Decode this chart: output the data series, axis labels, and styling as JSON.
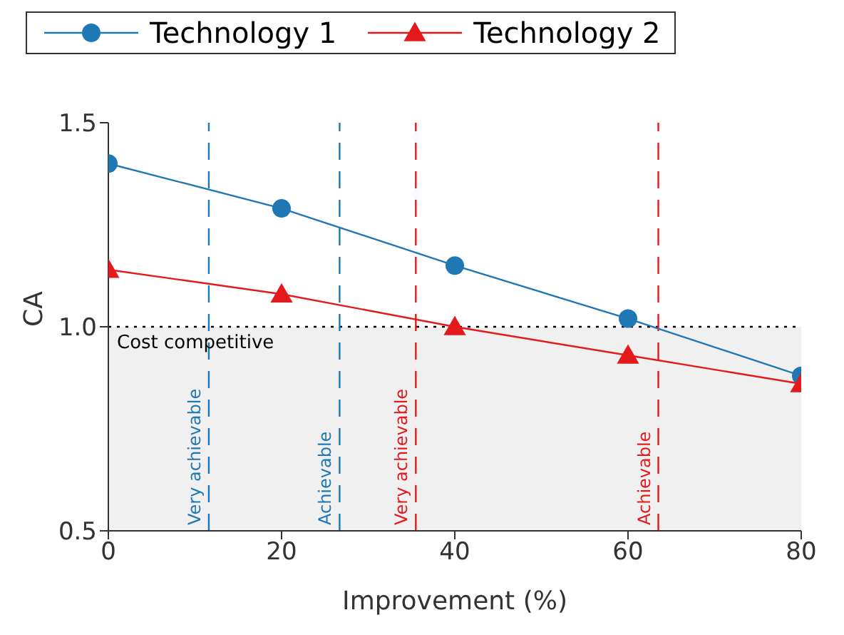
{
  "chart_data": {
    "type": "line",
    "xlabel": "Improvement (%)",
    "ylabel": "CA",
    "x": [
      0,
      20,
      40,
      60,
      80
    ],
    "series": [
      {
        "name": "Technology 1",
        "color": "#1f77b4",
        "marker": "circle",
        "values": [
          1.4,
          1.29,
          1.15,
          1.02,
          0.88
        ]
      },
      {
        "name": "Technology 2",
        "color": "#e31a1c",
        "marker": "triangle",
        "values": [
          1.14,
          1.08,
          1.0,
          0.93,
          0.86
        ]
      }
    ],
    "xlim": [
      0,
      80
    ],
    "xticks": [
      0,
      20,
      40,
      60,
      80
    ],
    "ylim": [
      0.5,
      1.5
    ],
    "yticks": [
      0.5,
      {
        "value": 1,
        "label": "1.0"
      },
      1.5
    ],
    "ref_lines": [
      {
        "axis": "y",
        "value": 1,
        "color": "#000000",
        "line_style": "dotted"
      },
      {
        "axis": "x",
        "value": 11.6,
        "label": "Very achievable",
        "color": "#1f77b4",
        "line_style": "dashed"
      },
      {
        "axis": "x",
        "value": 26.7,
        "label": "Achievable",
        "color": "#1f77b4",
        "line_style": "dashed"
      },
      {
        "axis": "x",
        "value": 35.5,
        "label": "Very achievable",
        "color": "#e31a1c",
        "line_style": "dashed"
      },
      {
        "axis": "x",
        "value": 63.5,
        "label": "Achievable",
        "color": "#e31a1c",
        "line_style": "dashed"
      }
    ],
    "bands": [
      {
        "axis": "y",
        "from": 0.5,
        "to": 1,
        "label": "Cost competitive",
        "color": "#f0f0f0"
      }
    ],
    "grid": false,
    "legend": "top"
  }
}
